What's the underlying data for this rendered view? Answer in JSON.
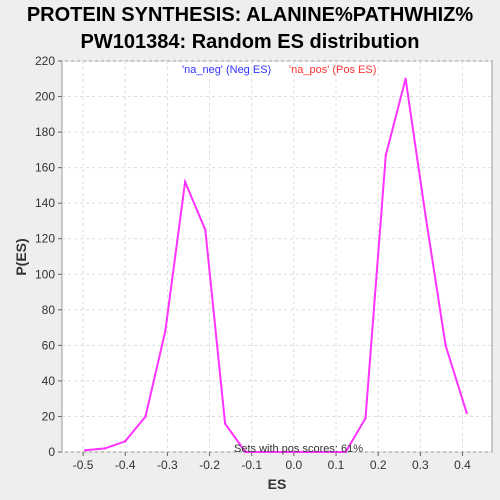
{
  "title_line1": "PROTEIN SYNTHESIS: ALANINE%PATHWHIZ%",
  "title_line2": "PW101384: Random ES distribution",
  "legend": {
    "neg": {
      "label": "'na_neg' (Neg ES)",
      "color": "#3333ff"
    },
    "pos": {
      "label": "'na_pos' (Pos ES)",
      "color": "#ff3333"
    }
  },
  "annotation": "Sets with pos scores: 61%",
  "chart_data": {
    "type": "line",
    "title": "PROTEIN SYNTHESIS: ALANINE%PATHWHIZ% PW101384: Random ES distribution",
    "xlabel": "ES",
    "ylabel": "P(ES)",
    "xlim": [
      -0.55,
      0.47
    ],
    "ylim": [
      0,
      220
    ],
    "x_ticks": [
      -0.5,
      -0.4,
      -0.3,
      -0.2,
      -0.1,
      0.0,
      0.1,
      0.2,
      0.3,
      0.4
    ],
    "x_tick_labels": [
      "-0.5",
      "-0.4",
      "-0.3",
      "-0.2",
      "-0.1",
      "0.0",
      "0.1",
      "0.2",
      "0.3",
      "0.4"
    ],
    "y_ticks": [
      0,
      20,
      40,
      60,
      80,
      100,
      120,
      140,
      160,
      180,
      200,
      220
    ],
    "grid": true,
    "legend_position": "top",
    "line_color": "#ff33ff",
    "series": [
      {
        "x": [
          -0.495,
          -0.448,
          -0.4,
          -0.352,
          -0.305,
          -0.258,
          -0.21,
          -0.163,
          -0.115,
          -0.068,
          -0.02,
          0.028,
          0.075,
          0.123,
          0.17,
          0.218,
          0.265,
          0.313,
          0.36,
          0.41
        ],
        "values": [
          1,
          2,
          6,
          20,
          68,
          152,
          125,
          16,
          0,
          0,
          0,
          0,
          0,
          0,
          19,
          167,
          210,
          132,
          60,
          22
        ]
      }
    ]
  }
}
